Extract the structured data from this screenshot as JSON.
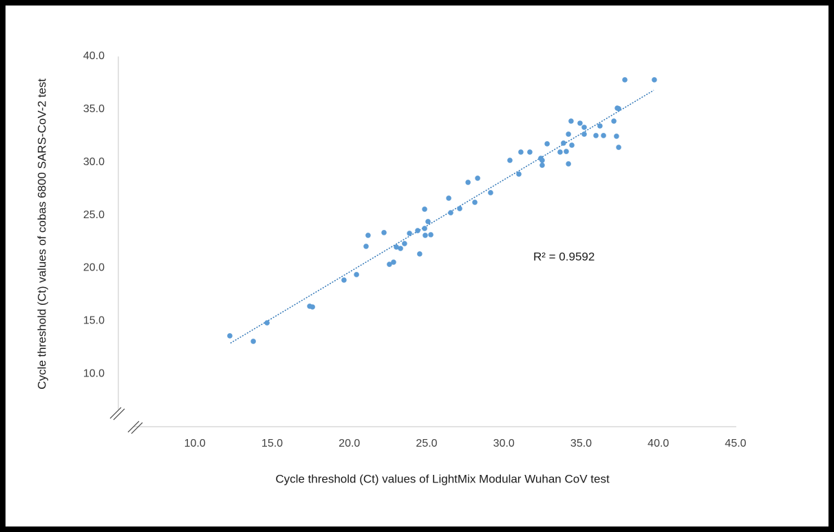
{
  "chart_data": {
    "type": "scatter",
    "x_label": "Cycle threshold (Ct) values of LightMix Modular Wuhan CoV test",
    "y_label": "Cycle threshold (Ct) values of cobas 6800 SARS-CoV-2 test",
    "annotation": "R² = 0.9592",
    "color": "#5b9bd5",
    "trendline_color": "#2e75b6",
    "xlim": [
      5,
      45
    ],
    "ylim": [
      5,
      40
    ],
    "xticks": [
      {
        "value": 10,
        "label": "10.0"
      },
      {
        "value": 15,
        "label": "15.0"
      },
      {
        "value": 20,
        "label": "20.0"
      },
      {
        "value": 25,
        "label": "25.0"
      },
      {
        "value": 30,
        "label": "30.0"
      },
      {
        "value": 35,
        "label": "35.0"
      },
      {
        "value": 40,
        "label": "40.0"
      },
      {
        "value": 45,
        "label": "45.0"
      }
    ],
    "yticks": [
      {
        "value": 10,
        "label": "10.0"
      },
      {
        "value": 15,
        "label": "15.0"
      },
      {
        "value": 20,
        "label": "20.0"
      },
      {
        "value": 25,
        "label": "25.0"
      },
      {
        "value": 30,
        "label": "30.0"
      },
      {
        "value": 35,
        "label": "35.0"
      },
      {
        "value": 40,
        "label": "40.0"
      }
    ],
    "x": [
      12.26,
      13.78,
      14.67,
      17.43,
      17.61,
      19.65,
      20.46,
      21.08,
      21.21,
      22.24,
      22.59,
      22.86,
      23.04,
      23.31,
      23.57,
      23.89,
      24.42,
      24.55,
      24.87,
      24.87,
      24.91,
      25.09,
      25.27,
      26.43,
      26.56,
      27.14,
      27.68,
      28.12,
      28.3,
      29.14,
      30.39,
      30.97,
      31.1,
      31.68,
      32.39,
      32.48,
      32.48,
      32.8,
      33.64,
      33.86,
      34.04,
      34.18,
      34.18,
      34.35,
      34.4,
      34.93,
      35.2,
      35.2,
      35.96,
      36.22,
      36.45,
      37.12,
      37.29,
      37.34,
      37.43,
      37.43,
      37.83,
      39.74
    ],
    "y": [
      13.59,
      13.07,
      14.82,
      16.39,
      16.32,
      18.86,
      19.38,
      22.05,
      23.09,
      23.35,
      20.35,
      20.55,
      21.98,
      21.85,
      22.31,
      23.28,
      23.54,
      21.33,
      23.74,
      25.56,
      23.09,
      24.39,
      23.15,
      26.6,
      25.23,
      25.62,
      28.1,
      26.21,
      28.49,
      27.12,
      30.18,
      28.88,
      30.96,
      30.96,
      30.37,
      30.18,
      29.72,
      31.74,
      30.96,
      31.81,
      31.02,
      32.65,
      29.85,
      33.89,
      31.61,
      33.69,
      33.3,
      32.65,
      32.52,
      33.43,
      32.52,
      33.89,
      32.46,
      35.12,
      35.06,
      31.41,
      37.79,
      37.79
    ],
    "trendline": {
      "x": [
        12.3,
        39.7
      ],
      "y": [
        12.9,
        36.8
      ]
    }
  }
}
